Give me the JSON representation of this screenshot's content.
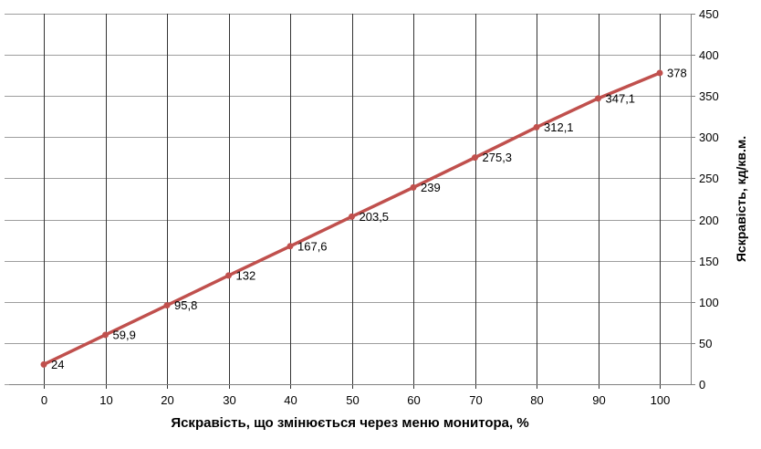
{
  "chart_data": {
    "type": "line",
    "xlabel": "Яскравість, що змінюється через меню монитора, %",
    "ylabel": "Яскравість, кд/кв.м.",
    "x": [
      0,
      10,
      20,
      30,
      40,
      50,
      60,
      70,
      80,
      90,
      100
    ],
    "values": [
      24,
      59.9,
      95.8,
      132,
      167.6,
      203.5,
      239,
      275.3,
      312.1,
      347.1,
      378
    ],
    "point_labels": [
      "24",
      "59,9",
      "95,8",
      "132",
      "167,6",
      "203,5",
      "239",
      "275,3",
      "312,1",
      "347,1",
      "378"
    ],
    "x_tick_labels": [
      "0",
      "10",
      "20",
      "30",
      "40",
      "50",
      "60",
      "70",
      "80",
      "90",
      "100"
    ],
    "y_tick_labels": [
      "0",
      "50",
      "100",
      "150",
      "200",
      "250",
      "300",
      "350",
      "400",
      "450"
    ],
    "xlim": [
      0,
      100
    ],
    "ylim": [
      0,
      450
    ],
    "y_axis_side": "right",
    "grid": true,
    "legend": "none",
    "colors": {
      "line": "#C0504D",
      "marker": "#C0504D",
      "h_gridline": "#9E9E9E",
      "v_gridline": "#333333",
      "axis_line": "#808080",
      "text": "#000000",
      "background": "#FFFFFF"
    }
  }
}
